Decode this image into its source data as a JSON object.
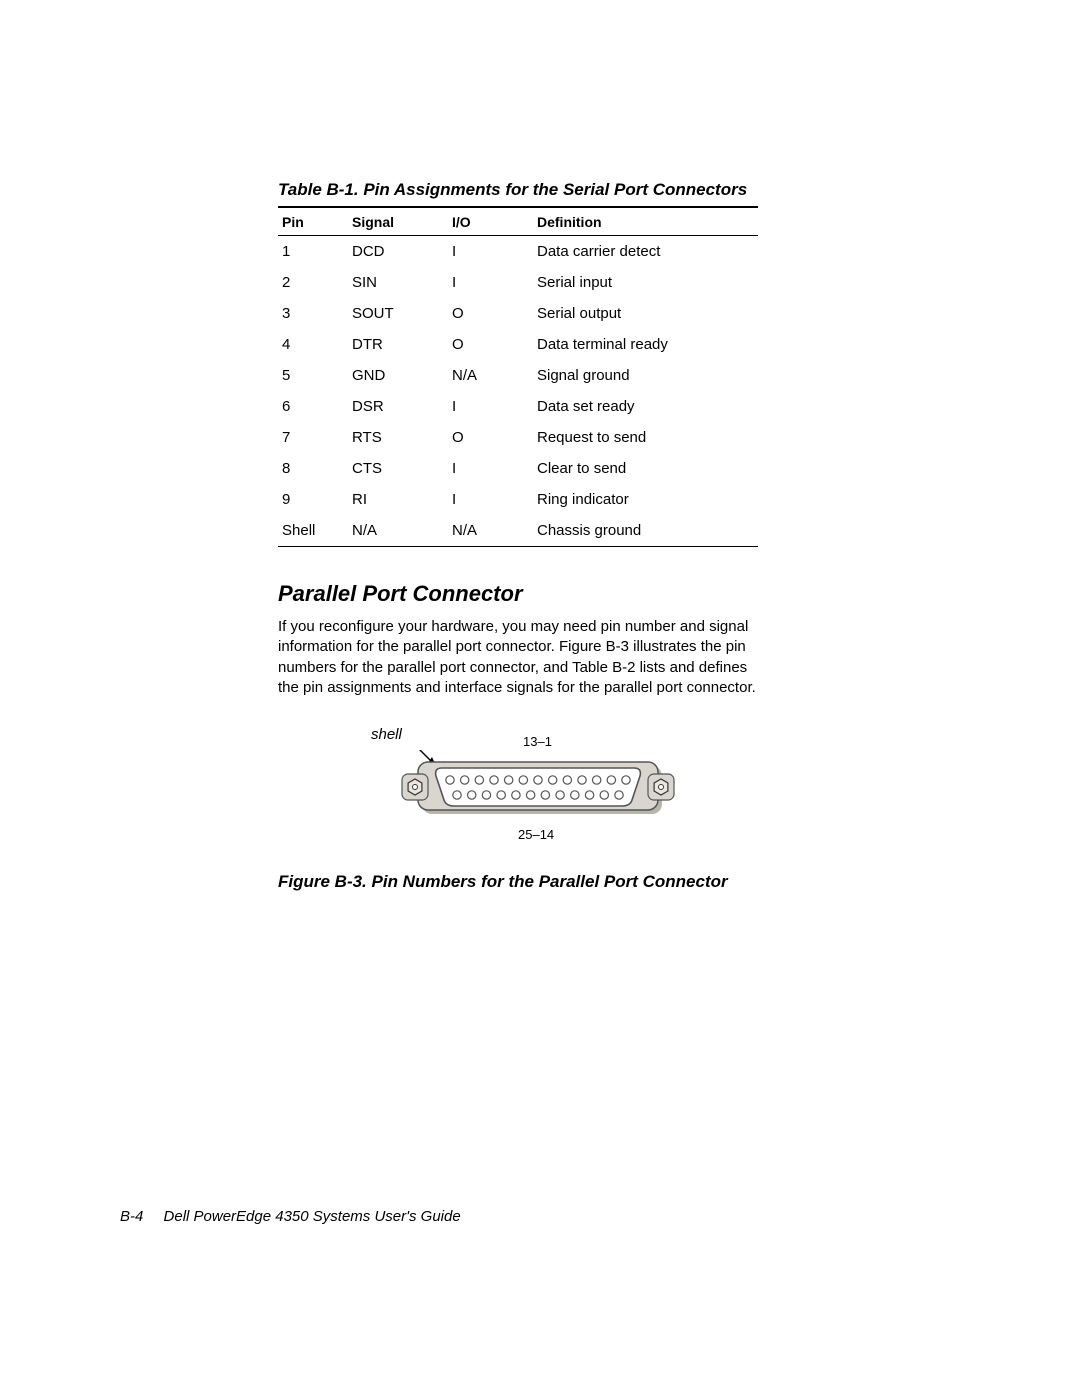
{
  "table": {
    "caption": "Table B-1.  Pin Assignments for the Serial Port Connectors",
    "columns": [
      "Pin",
      "Signal",
      "I/O",
      "Definition"
    ],
    "rows": [
      [
        "1",
        "DCD",
        "I",
        "Data carrier detect"
      ],
      [
        "2",
        "SIN",
        "I",
        "Serial input"
      ],
      [
        "3",
        "SOUT",
        "O",
        "Serial output"
      ],
      [
        "4",
        "DTR",
        "O",
        "Data terminal ready"
      ],
      [
        "5",
        "GND",
        "N/A",
        "Signal ground"
      ],
      [
        "6",
        "DSR",
        "I",
        "Data set ready"
      ],
      [
        "7",
        "RTS",
        "O",
        "Request to send"
      ],
      [
        "8",
        "CTS",
        "I",
        "Clear to send"
      ],
      [
        "9",
        "RI",
        "I",
        "Ring indicator"
      ],
      [
        "Shell",
        "N/A",
        "N/A",
        "Chassis ground"
      ]
    ]
  },
  "section": {
    "heading": "Parallel Port Connector",
    "body": "If you reconfigure your hardware, you may need pin number and signal information for the parallel port connector. Figure B-3 illustrates the pin numbers for the parallel port connector, and Table B-2 lists and defines the pin assignments and interface signals for the parallel port connector."
  },
  "figure": {
    "shell_label": "shell",
    "top_label": "13–1",
    "bottom_label": "25–14",
    "caption": "Figure B-3.  Pin Numbers for the Parallel Port Connector",
    "connector": {
      "top_pins": 13,
      "bottom_pins": 12,
      "outer_fill": "#d8d6ce",
      "outer_stroke": "#555555",
      "trapezoid_fill": "#ffffff",
      "hole_fill": "#ffffff",
      "hole_stroke": "#555555",
      "hex_stroke": "#333333",
      "hex_fill": "#e8e6de",
      "shadow": "#b8b5ab"
    }
  },
  "footer": {
    "page": "B-4",
    "title": "Dell PowerEdge 4350 Systems User's Guide"
  }
}
